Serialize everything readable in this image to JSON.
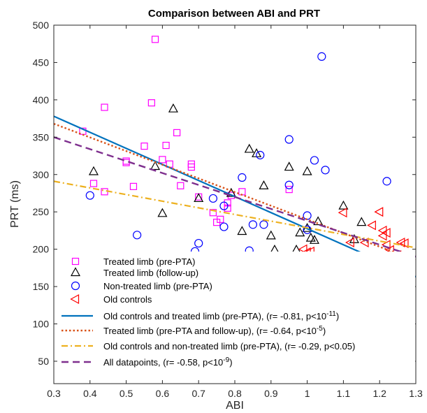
{
  "chart_data": {
    "type": "scatter",
    "title": "Comparison between ABI and PRT",
    "xlabel": "ABI",
    "ylabel": "PRT (ms)",
    "xlim": [
      0.3,
      1.3
    ],
    "ylim": [
      20,
      500
    ],
    "xticks": [
      "0.3",
      "0.4",
      "0.5",
      "0.6",
      "0.7",
      "0.8",
      "0.9",
      "1",
      "1.1",
      "1.2",
      "1.3"
    ],
    "yticks": [
      "50",
      "100",
      "150",
      "200",
      "250",
      "300",
      "350",
      "400",
      "450",
      "500"
    ],
    "grid": false,
    "legend_position": "bottom-left",
    "series": [
      {
        "name": "Treated limb (pre-PTA)",
        "marker": "square",
        "color": "#ff00ff",
        "points": [
          [
            0.38,
            358
          ],
          [
            0.41,
            288
          ],
          [
            0.44,
            277
          ],
          [
            0.44,
            390
          ],
          [
            0.5,
            318
          ],
          [
            0.5,
            316
          ],
          [
            0.52,
            284
          ],
          [
            0.55,
            338
          ],
          [
            0.57,
            396
          ],
          [
            0.58,
            481
          ],
          [
            0.6,
            320
          ],
          [
            0.61,
            339
          ],
          [
            0.62,
            314
          ],
          [
            0.64,
            356
          ],
          [
            0.65,
            285
          ],
          [
            0.68,
            314
          ],
          [
            0.68,
            310
          ],
          [
            0.7,
            270
          ],
          [
            0.74,
            249
          ],
          [
            0.75,
            236
          ],
          [
            0.76,
            240
          ],
          [
            0.78,
            255
          ],
          [
            0.78,
            262
          ],
          [
            0.79,
            272
          ],
          [
            0.82,
            277
          ],
          [
            0.95,
            280
          ]
        ]
      },
      {
        "name": "Treated limb (follow-up)",
        "marker": "triangle-up",
        "color": "#000000",
        "points": [
          [
            0.41,
            304
          ],
          [
            0.58,
            311
          ],
          [
            0.6,
            248
          ],
          [
            0.63,
            388
          ],
          [
            0.7,
            268
          ],
          [
            0.79,
            275
          ],
          [
            0.82,
            224
          ],
          [
            0.84,
            334
          ],
          [
            0.86,
            328
          ],
          [
            0.88,
            285
          ],
          [
            0.9,
            218
          ],
          [
            0.91,
            199
          ],
          [
            0.95,
            310
          ],
          [
            0.97,
            199
          ],
          [
            0.98,
            222
          ],
          [
            1.0,
            228
          ],
          [
            1.0,
            304
          ],
          [
            1.01,
            215
          ],
          [
            1.02,
            212
          ],
          [
            1.03,
            237
          ],
          [
            1.1,
            258
          ],
          [
            1.1,
            165
          ],
          [
            1.13,
            213
          ],
          [
            1.15,
            236
          ]
        ]
      },
      {
        "name": "Non-treated limb (pre-PTA)",
        "marker": "circle",
        "color": "#0000ff",
        "points": [
          [
            0.4,
            272
          ],
          [
            0.53,
            219
          ],
          [
            0.69,
            197
          ],
          [
            0.7,
            208
          ],
          [
            0.74,
            268
          ],
          [
            0.77,
            258
          ],
          [
            0.77,
            230
          ],
          [
            0.82,
            296
          ],
          [
            0.84,
            198
          ],
          [
            0.85,
            233
          ],
          [
            0.87,
            326
          ],
          [
            0.88,
            233
          ],
          [
            0.95,
            286
          ],
          [
            0.95,
            347
          ],
          [
            1.0,
            226
          ],
          [
            1.0,
            245
          ],
          [
            1.02,
            319
          ],
          [
            1.04,
            458
          ],
          [
            1.05,
            306
          ],
          [
            1.22,
            291
          ]
        ]
      },
      {
        "name": "Old controls",
        "marker": "triangle-left",
        "color": "#ff0000",
        "points": [
          [
            0.99,
            200
          ],
          [
            1.0,
            196
          ],
          [
            1.01,
            197
          ],
          [
            1.06,
            180
          ],
          [
            1.08,
            163
          ],
          [
            1.09,
            153
          ],
          [
            1.1,
            124
          ],
          [
            1.1,
            176
          ],
          [
            1.1,
            177
          ],
          [
            1.1,
            249
          ],
          [
            1.12,
            209
          ],
          [
            1.15,
            185
          ],
          [
            1.16,
            209
          ],
          [
            1.18,
            232
          ],
          [
            1.19,
            171
          ],
          [
            1.19,
            180
          ],
          [
            1.2,
            161
          ],
          [
            1.2,
            250
          ],
          [
            1.21,
            218
          ],
          [
            1.21,
            225
          ],
          [
            1.22,
            191
          ],
          [
            1.22,
            206
          ],
          [
            1.22,
            222
          ],
          [
            1.23,
            170
          ],
          [
            1.23,
            156
          ],
          [
            1.23,
            199
          ],
          [
            1.25,
            192
          ],
          [
            1.26,
            209
          ],
          [
            1.27,
            208
          ],
          [
            1.28,
            171
          ]
        ]
      }
    ],
    "fits": [
      {
        "label": "Old controls and treated limb (pre-PTA), (r= -0.81, p<10",
        "sup": "-11",
        "after": ")",
        "color": "#0072bd",
        "style": "solid",
        "width": 2.2,
        "from": [
          0.3,
          378
        ],
        "to": [
          1.3,
          163
        ]
      },
      {
        "label": "Treated limb (pre-PTA and follow-up), (r= -0.64, p<10",
        "sup": "-5",
        "after": ")",
        "color": "#d95319",
        "style": "dotted",
        "width": 2.4,
        "from": [
          0.3,
          368
        ],
        "to": [
          1.3,
          185
        ]
      },
      {
        "label": "Old controls and non-treated limb (pre-PTA), (r= -0.29, p<0.05)",
        "sup": "",
        "after": "",
        "color": "#edb120",
        "style": "dashdot",
        "width": 2.2,
        "from": [
          0.3,
          291
        ],
        "to": [
          1.3,
          202
        ]
      },
      {
        "label": "All datapoints, (r= -0.58, p<10",
        "sup": "-9",
        "after": ")",
        "color": "#7e2f8e",
        "style": "dashed",
        "width": 2.4,
        "from": [
          0.3,
          350
        ],
        "to": [
          1.3,
          190
        ]
      }
    ]
  }
}
